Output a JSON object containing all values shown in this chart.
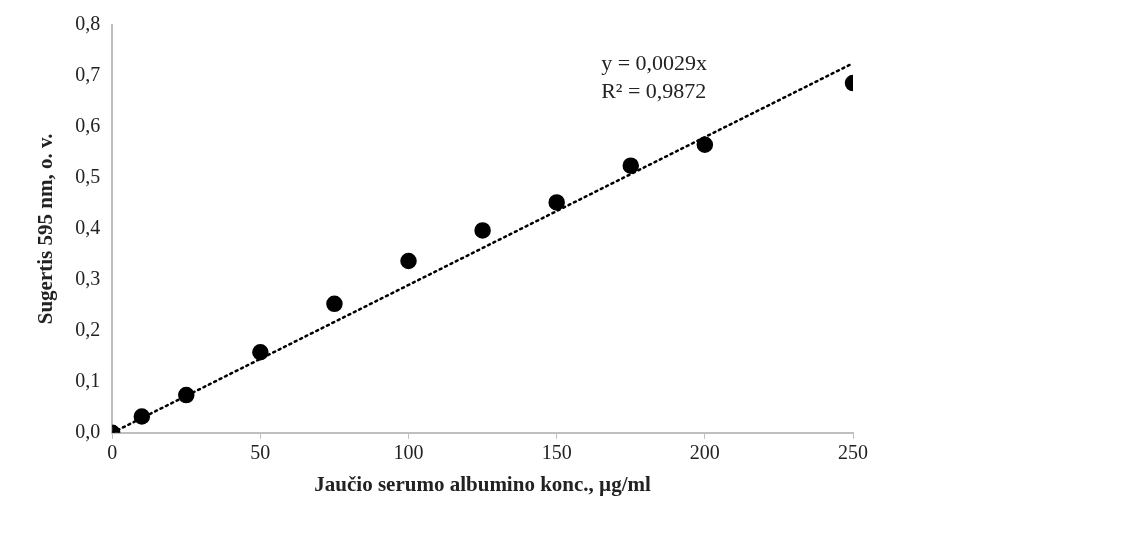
{
  "chart_data": {
    "type": "scatter",
    "xlabel": "Jaučio serumo albumino konc., µg/ml",
    "ylabel": "Sugertis 595 nm, o. v.",
    "x": [
      0,
      10,
      25,
      50,
      75,
      100,
      125,
      150,
      175,
      200,
      250
    ],
    "series": [
      {
        "color": "#000000",
        "marker": "circle",
        "values": [
          0,
          0.032,
          0.074,
          0.158,
          0.253,
          0.337,
          0.397,
          0.452,
          0.524,
          0.565,
          0.686
        ]
      },
      {
        "type": "line",
        "color": "#000000",
        "line_style": "dotted",
        "marker": "none",
        "x": [
          0,
          250
        ],
        "values": [
          0,
          0.725
        ]
      }
    ],
    "xlim": [
      0,
      250
    ],
    "xticks": [
      0,
      50,
      100,
      150,
      200,
      250
    ],
    "ylim": [
      0,
      0.8
    ],
    "yticks": [
      {
        "value": 0,
        "label": "0,0"
      },
      {
        "value": 0.1,
        "label": "0,1"
      },
      {
        "value": 0.2,
        "label": "0,2"
      },
      {
        "value": 0.3,
        "label": "0,3"
      },
      {
        "value": 0.4,
        "label": "0,4"
      },
      {
        "value": 0.5,
        "label": "0,5"
      },
      {
        "value": 0.6,
        "label": "0,6"
      },
      {
        "value": 0.7,
        "label": "0,7"
      },
      {
        "value": 0.8,
        "label": "0,8"
      }
    ],
    "annotations": [
      "y = 0,0029x",
      "R² = 0,9872"
    ],
    "grid": false,
    "legend": false
  }
}
